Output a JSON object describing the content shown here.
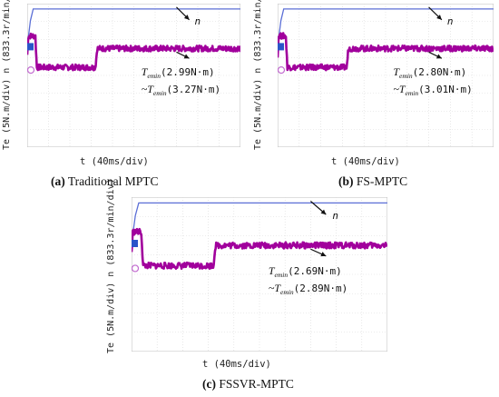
{
  "colors": {
    "grid_bg": "#ffffff",
    "grid_line": "#d9d9d9",
    "speed_trace": "#5b6fd6",
    "torque_trace": "#a1009c",
    "marker_ch1": "#2a55c9",
    "marker_ch3": "#c26bd0"
  },
  "ylabel": "Te (5N.m/div) n (833.3r/min/div)",
  "xlabel": "t (40ms/div)",
  "chart_data": [
    {
      "type": "line",
      "caption_letter": "(a)",
      "caption_text": "Traditional MPTC",
      "series": [
        {
          "name": "n",
          "values_div": [
            [
              0,
              0.95
            ],
            [
              0.15,
              2.4
            ],
            [
              0.28,
              3.05
            ],
            [
              10,
              3.05
            ]
          ]
        },
        {
          "name": "Te",
          "values_div": [
            [
              0,
              0.5
            ],
            [
              0.05,
              1.55
            ],
            [
              0.38,
              1.55
            ],
            [
              0.45,
              -0.2
            ],
            [
              3.2,
              -0.2
            ],
            [
              3.28,
              0.85
            ],
            [
              10,
              0.85
            ]
          ]
        }
      ],
      "annotation_n": "n",
      "annotation_te_line1": "T",
      "annotation_te_sub1": "emin",
      "annotation_te_val1": "(2.99N·m)",
      "annotation_te_prefix2": "~T",
      "annotation_te_sub2": "emin",
      "annotation_te_val2": "(3.27N·m)"
    },
    {
      "type": "line",
      "caption_letter": "(b)",
      "caption_text": "FS-MPTC",
      "series": [
        {
          "name": "n",
          "values_div": [
            [
              0,
              0.95
            ],
            [
              0.15,
              2.4
            ],
            [
              0.28,
              3.05
            ],
            [
              10,
              3.05
            ]
          ]
        },
        {
          "name": "Te",
          "values_div": [
            [
              0,
              0.5
            ],
            [
              0.05,
              1.55
            ],
            [
              0.38,
              1.55
            ],
            [
              0.45,
              -0.2
            ],
            [
              3.2,
              -0.2
            ],
            [
              3.28,
              0.85
            ],
            [
              10,
              0.85
            ]
          ]
        }
      ],
      "annotation_n": "n",
      "annotation_te_line1": "T",
      "annotation_te_sub1": "emin",
      "annotation_te_val1": "(2.80N·m)",
      "annotation_te_prefix2": "~T",
      "annotation_te_sub2": "emin",
      "annotation_te_val2": "(3.01N·m)"
    },
    {
      "type": "line",
      "caption_letter": "(c)",
      "caption_text": "FSSVR-MPTC",
      "series": [
        {
          "name": "n",
          "values_div": [
            [
              0,
              0.95
            ],
            [
              0.15,
              2.4
            ],
            [
              0.28,
              3.05
            ],
            [
              10,
              3.05
            ]
          ]
        },
        {
          "name": "Te",
          "values_div": [
            [
              0,
              0.5
            ],
            [
              0.05,
              1.55
            ],
            [
              0.38,
              1.55
            ],
            [
              0.45,
              -0.2
            ],
            [
              3.2,
              -0.2
            ],
            [
              3.28,
              0.85
            ],
            [
              10,
              0.85
            ]
          ]
        }
      ],
      "annotation_n": "n",
      "annotation_te_line1": "T",
      "annotation_te_sub1": "emin",
      "annotation_te_val1": "(2.69N·m)",
      "annotation_te_prefix2": "~T",
      "annotation_te_sub2": "emin",
      "annotation_te_val2": "(2.89N·m)"
    }
  ]
}
